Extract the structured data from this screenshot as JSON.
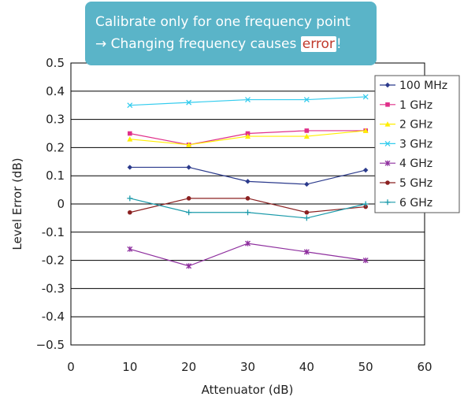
{
  "callout": {
    "line1": "Calibrate only for one frequency point",
    "line2_prefix": "→ Changing frequency causes ",
    "line2_highlight": "error",
    "line2_suffix": "!"
  },
  "chart_data": {
    "type": "line",
    "title": "",
    "xlabel": "Attenuator (dB)",
    "ylabel": "Level Error (dB)",
    "xlim": [
      0,
      60
    ],
    "ylim": [
      -0.5,
      0.5
    ],
    "xticks": [
      0,
      10,
      20,
      30,
      40,
      50,
      60
    ],
    "yticks": [
      0.5,
      0.4,
      0.3,
      0.2,
      0.1,
      0,
      -0.1,
      -0.2,
      -0.3,
      -0.4,
      -0.5
    ],
    "ytick_labels": [
      "0.5",
      "0.4",
      "0.3",
      "0.2",
      "0.1",
      "0",
      "-0.1",
      "-0.2",
      "-0.3",
      "-0.4",
      "−0.5"
    ],
    "grid": "horizontal",
    "legend_position": "right",
    "x": [
      10,
      20,
      30,
      40,
      50
    ],
    "series": [
      {
        "name": "100 MHz",
        "color": "#2b3a8c",
        "marker": "diamond",
        "values": [
          0.13,
          0.13,
          0.08,
          0.07,
          0.12
        ]
      },
      {
        "name": "1 GHz",
        "color": "#e0308a",
        "marker": "square",
        "values": [
          0.25,
          0.21,
          0.25,
          0.26,
          0.26
        ]
      },
      {
        "name": "2 GHz",
        "color": "#ffee00",
        "marker": "triangle",
        "values": [
          0.23,
          0.21,
          0.24,
          0.24,
          0.26
        ]
      },
      {
        "name": "3 GHz",
        "color": "#33ccee",
        "marker": "x",
        "values": [
          0.35,
          0.36,
          0.37,
          0.37,
          0.38
        ]
      },
      {
        "name": "4 GHz",
        "color": "#8e2f9e",
        "marker": "star",
        "values": [
          -0.16,
          -0.22,
          -0.14,
          -0.17,
          -0.2
        ]
      },
      {
        "name": "5 GHz",
        "color": "#8b2020",
        "marker": "circle",
        "values": [
          -0.03,
          0.02,
          0.02,
          -0.03,
          -0.01
        ]
      },
      {
        "name": "6 GHz",
        "color": "#1a9aaa",
        "marker": "plus",
        "values": [
          0.02,
          -0.03,
          -0.03,
          -0.05,
          0.0
        ]
      }
    ]
  }
}
